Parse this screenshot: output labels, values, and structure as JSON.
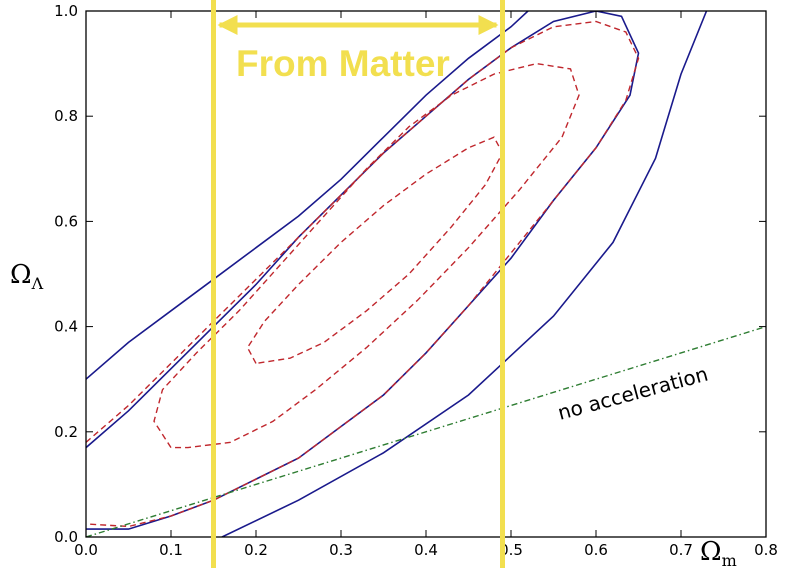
{
  "chart_data": {
    "type": "line",
    "title": "",
    "xlabel": "Ω",
    "xlabel_sub": "m",
    "ylabel": "Ω",
    "ylabel_sub": "Λ",
    "xlim": [
      0.0,
      0.8
    ],
    "ylim": [
      0.0,
      1.0
    ],
    "xticks": [
      "0.0",
      "0.1",
      "0.2",
      "0.3",
      "0.4",
      "0.5",
      "0.6",
      "0.7",
      "0.8"
    ],
    "yticks": [
      "0.0",
      "0.2",
      "0.4",
      "0.6",
      "0.8",
      "1.0"
    ],
    "grid": false,
    "colors": {
      "solid": "#1a1a8c",
      "dashed": "#c0272d",
      "dashdot": "#2e7d32",
      "band": "#f2df4f"
    },
    "series": [
      {
        "style": "solid",
        "points": [
          [
            0,
            0.3
          ],
          [
            0.05,
            0.37
          ],
          [
            0.1,
            0.43
          ],
          [
            0.15,
            0.49
          ],
          [
            0.2,
            0.55
          ],
          [
            0.25,
            0.61
          ],
          [
            0.3,
            0.68
          ],
          [
            0.35,
            0.76
          ],
          [
            0.4,
            0.84
          ],
          [
            0.45,
            0.91
          ],
          [
            0.5,
            0.97
          ],
          [
            0.52,
            1.0
          ]
        ]
      },
      {
        "style": "solid",
        "points": [
          [
            0.0,
            0.17
          ],
          [
            0.05,
            0.24
          ],
          [
            0.1,
            0.32
          ],
          [
            0.15,
            0.4
          ],
          [
            0.2,
            0.48
          ],
          [
            0.25,
            0.57
          ],
          [
            0.3,
            0.65
          ],
          [
            0.35,
            0.73
          ],
          [
            0.4,
            0.8
          ],
          [
            0.45,
            0.87
          ],
          [
            0.5,
            0.93
          ],
          [
            0.55,
            0.98
          ],
          [
            0.6,
            1.0
          ],
          [
            0.63,
            0.99
          ],
          [
            0.65,
            0.92
          ],
          [
            0.64,
            0.84
          ],
          [
            0.6,
            0.74
          ],
          [
            0.55,
            0.64
          ],
          [
            0.5,
            0.53
          ],
          [
            0.45,
            0.44
          ],
          [
            0.4,
            0.35
          ],
          [
            0.35,
            0.27
          ],
          [
            0.3,
            0.21
          ],
          [
            0.25,
            0.15
          ],
          [
            0.2,
            0.11
          ],
          [
            0.15,
            0.07
          ],
          [
            0.1,
            0.04
          ],
          [
            0.05,
            0.015
          ],
          [
            0.0,
            0.015
          ]
        ]
      },
      {
        "style": "solid",
        "points": [
          [
            0.16,
            0.0
          ],
          [
            0.25,
            0.07
          ],
          [
            0.35,
            0.16
          ],
          [
            0.45,
            0.27
          ],
          [
            0.55,
            0.42
          ],
          [
            0.62,
            0.56
          ],
          [
            0.67,
            0.72
          ],
          [
            0.7,
            0.88
          ],
          [
            0.73,
            1.0
          ]
        ]
      },
      {
        "style": "dashed",
        "points": [
          [
            0.0,
            0.18
          ],
          [
            0.05,
            0.25
          ],
          [
            0.1,
            0.33
          ],
          [
            0.15,
            0.41
          ],
          [
            0.2,
            0.49
          ],
          [
            0.25,
            0.57
          ],
          [
            0.3,
            0.65
          ],
          [
            0.35,
            0.73
          ],
          [
            0.4,
            0.8
          ],
          [
            0.45,
            0.87
          ],
          [
            0.5,
            0.93
          ],
          [
            0.55,
            0.97
          ],
          [
            0.6,
            0.98
          ],
          [
            0.635,
            0.96
          ],
          [
            0.65,
            0.91
          ],
          [
            0.635,
            0.83
          ],
          [
            0.6,
            0.74
          ],
          [
            0.55,
            0.64
          ],
          [
            0.5,
            0.54
          ],
          [
            0.45,
            0.44
          ],
          [
            0.4,
            0.35
          ],
          [
            0.35,
            0.27
          ],
          [
            0.3,
            0.21
          ],
          [
            0.25,
            0.15
          ],
          [
            0.2,
            0.11
          ],
          [
            0.15,
            0.07
          ],
          [
            0.1,
            0.04
          ],
          [
            0.05,
            0.02
          ],
          [
            0.0,
            0.025
          ]
        ]
      },
      {
        "style": "dashed",
        "points": [
          [
            0.1,
            0.17
          ],
          [
            0.08,
            0.22
          ],
          [
            0.09,
            0.28
          ],
          [
            0.13,
            0.35
          ],
          [
            0.18,
            0.43
          ],
          [
            0.23,
            0.52
          ],
          [
            0.28,
            0.61
          ],
          [
            0.33,
            0.7
          ],
          [
            0.38,
            0.78
          ],
          [
            0.43,
            0.84
          ],
          [
            0.48,
            0.88
          ],
          [
            0.53,
            0.9
          ],
          [
            0.57,
            0.89
          ],
          [
            0.58,
            0.84
          ],
          [
            0.56,
            0.76
          ],
          [
            0.51,
            0.66
          ],
          [
            0.45,
            0.55
          ],
          [
            0.39,
            0.45
          ],
          [
            0.33,
            0.36
          ],
          [
            0.27,
            0.28
          ],
          [
            0.22,
            0.22
          ],
          [
            0.17,
            0.18
          ],
          [
            0.12,
            0.17
          ],
          [
            0.1,
            0.17
          ]
        ]
      },
      {
        "style": "dashed",
        "points": [
          [
            0.2,
            0.33
          ],
          [
            0.19,
            0.36
          ],
          [
            0.21,
            0.41
          ],
          [
            0.25,
            0.48
          ],
          [
            0.3,
            0.56
          ],
          [
            0.35,
            0.63
          ],
          [
            0.4,
            0.69
          ],
          [
            0.45,
            0.74
          ],
          [
            0.48,
            0.76
          ],
          [
            0.49,
            0.73
          ],
          [
            0.47,
            0.67
          ],
          [
            0.43,
            0.59
          ],
          [
            0.38,
            0.5
          ],
          [
            0.33,
            0.43
          ],
          [
            0.28,
            0.37
          ],
          [
            0.24,
            0.34
          ],
          [
            0.2,
            0.33
          ]
        ]
      },
      {
        "style": "dashdot",
        "name": "no acceleration",
        "points": [
          [
            0.0,
            0.0
          ],
          [
            0.8,
            0.4
          ]
        ]
      }
    ],
    "vlines": [
      0.15,
      0.49
    ],
    "annotations": [
      {
        "text": "From Matter",
        "kind": "band-label"
      },
      {
        "text": "no acceleration",
        "kind": "line-label"
      }
    ]
  }
}
